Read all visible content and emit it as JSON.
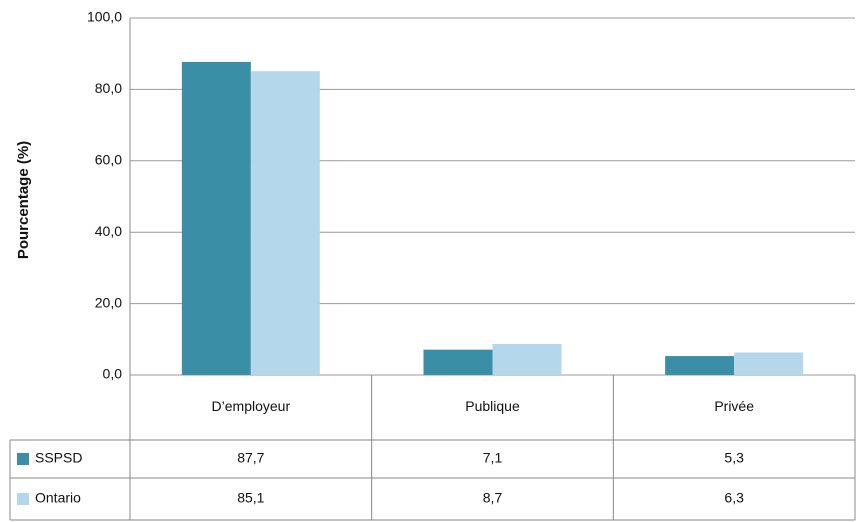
{
  "chart_data": {
    "type": "bar",
    "y_label": "Pourcentage (%)",
    "categories": [
      "D’employeur",
      "Publique",
      "Privée"
    ],
    "series": [
      {
        "name": "SSPSD",
        "color": "#3a8ea6",
        "values": [
          87.7,
          7.1,
          5.3
        ],
        "value_labels": [
          "87,7",
          "7,1",
          "5,3"
        ]
      },
      {
        "name": "Ontario",
        "color": "#b4d7eb",
        "values": [
          85.1,
          8.7,
          6.3
        ],
        "value_labels": [
          "85,1",
          "8,7",
          "6,3"
        ]
      }
    ],
    "ylim": [
      0,
      100
    ],
    "yticks": [
      {
        "value": 0,
        "label": "0,0"
      },
      {
        "value": 20,
        "label": "20,0"
      },
      {
        "value": 40,
        "label": "40,0"
      },
      {
        "value": 60,
        "label": "60,0"
      },
      {
        "value": 80,
        "label": "80,0"
      },
      {
        "value": 100,
        "label": "100,0"
      }
    ],
    "grid": true
  }
}
